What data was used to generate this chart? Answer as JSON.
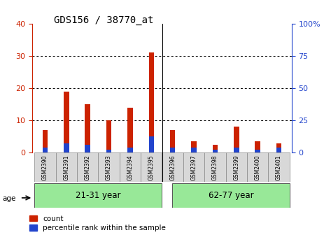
{
  "title": "GDS156 / 38770_at",
  "samples": [
    "GSM2390",
    "GSM2391",
    "GSM2392",
    "GSM2393",
    "GSM2394",
    "GSM2395",
    "GSM2396",
    "GSM2397",
    "GSM2398",
    "GSM2399",
    "GSM2400",
    "GSM2401"
  ],
  "count_values": [
    7,
    19,
    15,
    10,
    14,
    31,
    7,
    3.5,
    2.5,
    8,
    3.5,
    3
  ],
  "percentile_values": [
    1.5,
    3,
    2.5,
    1,
    1.5,
    5,
    1.5,
    1.5,
    1,
    1.5,
    1,
    1.5
  ],
  "group1_label": "21-31 year",
  "group2_label": "62-77 year",
  "group1_count": 6,
  "group2_count": 6,
  "ylim_left": [
    0,
    40
  ],
  "ylim_right": [
    0,
    100
  ],
  "yticks_left": [
    0,
    10,
    20,
    30,
    40
  ],
  "yticks_right": [
    0,
    25,
    50,
    75,
    100
  ],
  "bar_color_red": "#cc2200",
  "bar_color_blue": "#2244cc",
  "bg_color_group": "#98e898",
  "tick_color_left": "#cc2200",
  "tick_color_right": "#2244cc",
  "bar_width": 0.25,
  "legend_count": "count",
  "legend_percentile": "percentile rank within the sample",
  "grid_dotted_at": [
    10,
    20,
    30
  ]
}
